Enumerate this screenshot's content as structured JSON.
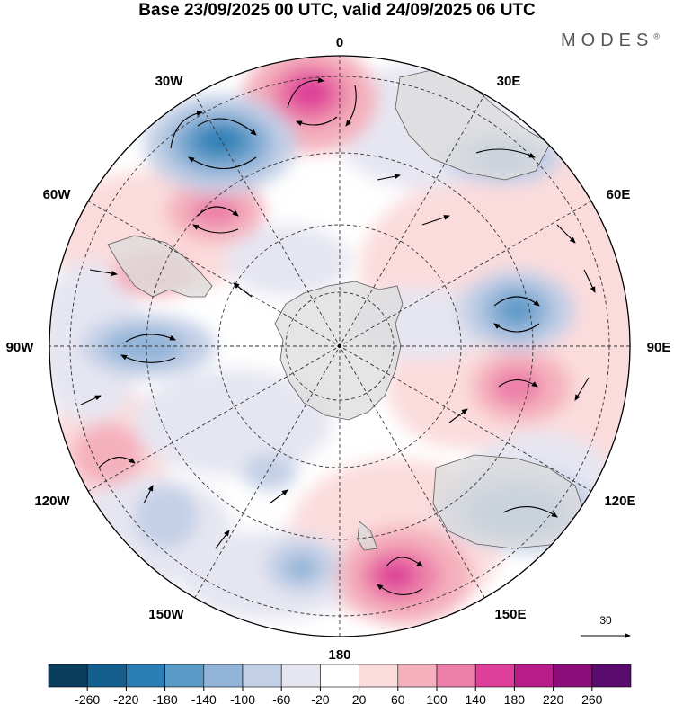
{
  "title": "Base 23/09/2025 00 UTC, valid 24/09/2025 06 UTC",
  "brand": "MODES",
  "brand_mark": "®",
  "longitude_labels": {
    "top": "0",
    "top_left": "30W",
    "top_right": "30E",
    "upper_left": "60W",
    "upper_right": "60E",
    "left": "90W",
    "right": "90E",
    "lower_left": "120W",
    "lower_right": "120E",
    "bottom_left": "150W",
    "bottom_right": "150E",
    "bottom": "180"
  },
  "reference_vector": {
    "label": "30"
  },
  "colorbar": {
    "ticks": [
      "-260",
      "-220",
      "-180",
      "-140",
      "-100",
      "-60",
      "-20",
      "20",
      "60",
      "100",
      "140",
      "180",
      "220",
      "260"
    ],
    "colors": [
      "#0a3d5e",
      "#155f8f",
      "#2b7eb4",
      "#5b9ac7",
      "#92b4d8",
      "#c3cfe6",
      "#e6e6f1",
      "#ffffff",
      "#fbdcdd",
      "#f4b0bd",
      "#ec7fa8",
      "#de3f98",
      "#b81c88",
      "#8c0e7a",
      "#5a0b6e"
    ]
  },
  "colors": {
    "land": "#dcdcdc",
    "coast": "#5a5a5a",
    "grid": "#333333"
  }
}
